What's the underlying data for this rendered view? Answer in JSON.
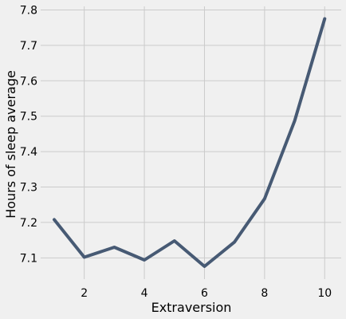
{
  "chart_data": {
    "type": "line",
    "title": "",
    "xlabel": "Extraversion",
    "ylabel": "Hours of sleep average",
    "x": [
      1,
      2,
      3,
      4,
      5,
      6,
      7,
      8,
      9,
      10
    ],
    "series": [
      {
        "values": [
          7.208,
          7.102,
          7.13,
          7.094,
          7.148,
          7.076,
          7.145,
          7.267,
          7.487,
          7.775
        ]
      }
    ],
    "xlim": [
      0.55,
      10.55
    ],
    "ylim": [
      7.04,
      7.81
    ],
    "xticks": [
      "2",
      "4",
      "6",
      "8",
      "10"
    ],
    "yticks": [
      "7.1",
      "7.2",
      "7.3",
      "7.4",
      "7.5",
      "7.6",
      "7.7",
      "7.8"
    ],
    "grid": true,
    "legend": "none",
    "colors": {
      "background": "#f0f0f0",
      "grid": "#cbcbcb",
      "line": "#475a74"
    }
  }
}
